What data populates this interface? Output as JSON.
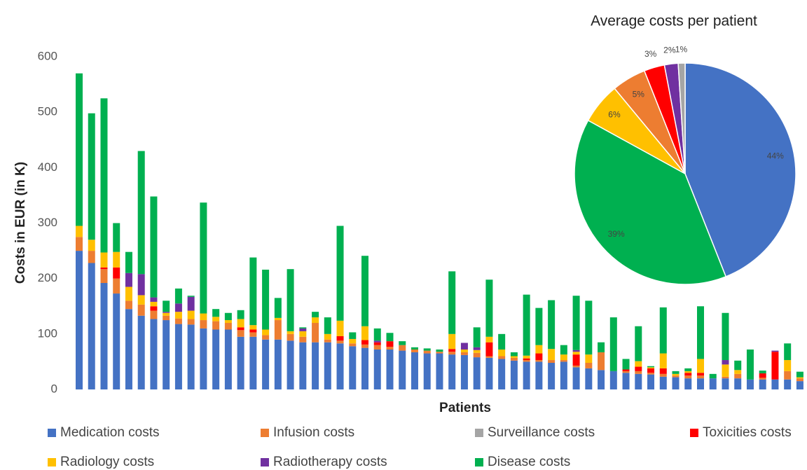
{
  "chart_data": [
    {
      "type": "stacked_bar",
      "ylabel": "Costs in EUR (in K)",
      "xlabel": "Patients",
      "ylim": [
        0,
        600
      ],
      "yticks": [
        0,
        100,
        200,
        300,
        400,
        500,
        600
      ],
      "grid": false,
      "legend": "bottom",
      "series": [
        {
          "name": "Medication costs",
          "color": "#4472c4",
          "values": [
            250,
            228,
            192,
            173,
            145,
            133,
            127,
            125,
            118,
            117,
            110,
            108,
            108,
            95,
            95,
            90,
            90,
            88,
            85,
            85,
            85,
            83,
            78,
            75,
            72,
            72,
            70,
            67,
            65,
            65,
            63,
            62,
            58,
            57,
            55,
            52,
            50,
            50,
            48,
            50,
            40,
            38,
            35,
            33,
            30,
            28,
            27,
            23,
            22,
            20,
            20,
            20,
            20,
            20,
            18,
            18,
            18,
            18,
            15
          ]
        },
        {
          "name": "Infusion costs",
          "color": "#ed7d31",
          "values": [
            25,
            22,
            25,
            27,
            15,
            20,
            15,
            8,
            10,
            10,
            15,
            15,
            12,
            12,
            8,
            8,
            35,
            12,
            10,
            35,
            5,
            5,
            5,
            6,
            8,
            5,
            10,
            5,
            5,
            3,
            5,
            5,
            8,
            3,
            5,
            5,
            3,
            3,
            5,
            3,
            3,
            10,
            32,
            0,
            3,
            5,
            3,
            5,
            3,
            5,
            5,
            0,
            3,
            8,
            0,
            3,
            0,
            15,
            5
          ]
        },
        {
          "name": "Surveillance costs",
          "color": "#a5a5a5",
          "values": [
            0,
            0,
            0,
            0,
            0,
            0,
            0,
            0,
            0,
            0,
            0,
            0,
            0,
            0,
            0,
            0,
            0,
            0,
            0,
            0,
            0,
            0,
            0,
            0,
            0,
            0,
            0,
            0,
            0,
            0,
            0,
            0,
            0,
            0,
            0,
            0,
            0,
            0,
            0,
            0,
            0,
            0,
            0,
            0,
            0,
            0,
            0,
            0,
            0,
            0,
            0,
            0,
            0,
            0,
            0,
            0,
            0,
            0,
            0
          ]
        },
        {
          "name": "Toxicities costs",
          "color": "#ff0000",
          "values": [
            0,
            0,
            3,
            20,
            0,
            0,
            8,
            0,
            0,
            0,
            0,
            0,
            0,
            5,
            5,
            0,
            0,
            0,
            0,
            0,
            0,
            8,
            0,
            8,
            5,
            10,
            0,
            0,
            0,
            0,
            5,
            0,
            0,
            25,
            0,
            0,
            3,
            12,
            0,
            0,
            20,
            0,
            0,
            0,
            3,
            8,
            8,
            10,
            0,
            5,
            5,
            0,
            0,
            0,
            0,
            8,
            50,
            0,
            0
          ]
        },
        {
          "name": "Radiology costs",
          "color": "#ffc000",
          "values": [
            20,
            20,
            27,
            28,
            25,
            17,
            8,
            5,
            12,
            15,
            12,
            8,
            5,
            15,
            8,
            10,
            4,
            5,
            10,
            10,
            10,
            28,
            8,
            25,
            0,
            0,
            0,
            0,
            0,
            0,
            27,
            5,
            5,
            10,
            12,
            3,
            5,
            15,
            20,
            10,
            5,
            15,
            0,
            0,
            0,
            10,
            2,
            27,
            3,
            3,
            25,
            0,
            22,
            7,
            0,
            0,
            0,
            20,
            2
          ]
        },
        {
          "name": "Radiotherapy costs",
          "color": "#7030a0",
          "values": [
            0,
            0,
            0,
            0,
            25,
            38,
            8,
            2,
            15,
            25,
            0,
            0,
            0,
            0,
            0,
            0,
            0,
            0,
            5,
            0,
            0,
            0,
            0,
            0,
            3,
            0,
            0,
            0,
            0,
            0,
            0,
            12,
            5,
            0,
            0,
            0,
            0,
            0,
            0,
            0,
            3,
            0,
            0,
            0,
            0,
            0,
            0,
            0,
            0,
            0,
            0,
            0,
            8,
            0,
            0,
            0,
            2,
            0,
            0
          ]
        },
        {
          "name": "Disease costs",
          "color": "#00b050",
          "values": [
            275,
            228,
            278,
            52,
            38,
            222,
            182,
            20,
            27,
            2,
            200,
            14,
            13,
            16,
            122,
            108,
            36,
            112,
            2,
            10,
            30,
            171,
            12,
            127,
            22,
            15,
            7,
            4,
            4,
            4,
            113,
            0,
            36,
            103,
            28,
            7,
            110,
            67,
            88,
            17,
            98,
            97,
            18,
            97,
            19,
            63,
            2,
            83,
            5,
            5,
            95,
            8,
            85,
            17,
            54,
            5,
            0,
            30,
            10
          ]
        }
      ]
    },
    {
      "type": "pie",
      "title": "Average costs per patient",
      "values": [
        44,
        39,
        6,
        5,
        3,
        2,
        1
      ],
      "value_labels": [
        "44%",
        "39%",
        "6%",
        "5%",
        "3%",
        "2%",
        "1%"
      ],
      "colors": [
        "#4472c4",
        "#00b050",
        "#ffc000",
        "#ed7d31",
        "#ff0000",
        "#7030a0",
        "#a5a5a5"
      ]
    }
  ]
}
